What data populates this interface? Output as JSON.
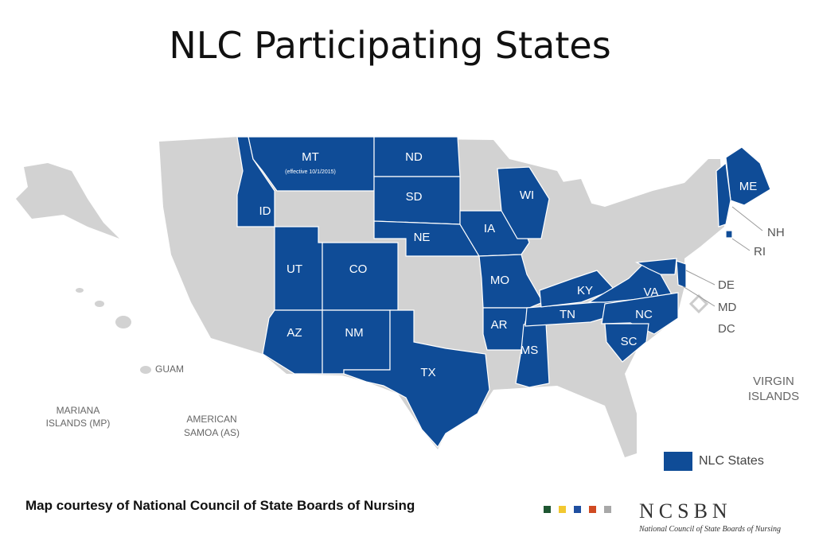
{
  "title": "NLC Participating States",
  "colors": {
    "nlc_state": "#0f4c97",
    "other": "#d2d2d2"
  },
  "states": {
    "MT": "MT",
    "MT_note": "(effective 10/1/2015)",
    "ID": "ID",
    "ND": "ND",
    "SD": "SD",
    "NE": "NE",
    "IA": "IA",
    "WI": "WI",
    "MO": "MO",
    "UT": "UT",
    "CO": "CO",
    "AZ": "AZ",
    "NM": "NM",
    "TX": "TX",
    "AR": "AR",
    "MS": "MS",
    "TN": "TN",
    "KY": "KY",
    "VA": "VA",
    "NC": "NC",
    "SC": "SC",
    "ME": "ME",
    "NH": "NH",
    "RI": "RI",
    "DE": "DE",
    "MD": "MD",
    "DC": "DC"
  },
  "territories": {
    "guam": "GUAM",
    "mariana_1": "MARIANA",
    "mariana_2": "ISLANDS (MP)",
    "samoa_1": "AMERICAN",
    "samoa_2": "SAMOA (AS)",
    "virgin_1": "VIRGIN",
    "virgin_2": "ISLANDS"
  },
  "legend": {
    "label": "NLC States"
  },
  "credit": "Map courtesy of National Council of State Boards of Nursing",
  "logo": {
    "name": "NCSBN",
    "subtitle": "National Council of State Boards of Nursing",
    "colors": [
      "#1e5631",
      "#f2c830",
      "#1f4fa0",
      "#d04a22",
      "#a8a8a8"
    ]
  }
}
